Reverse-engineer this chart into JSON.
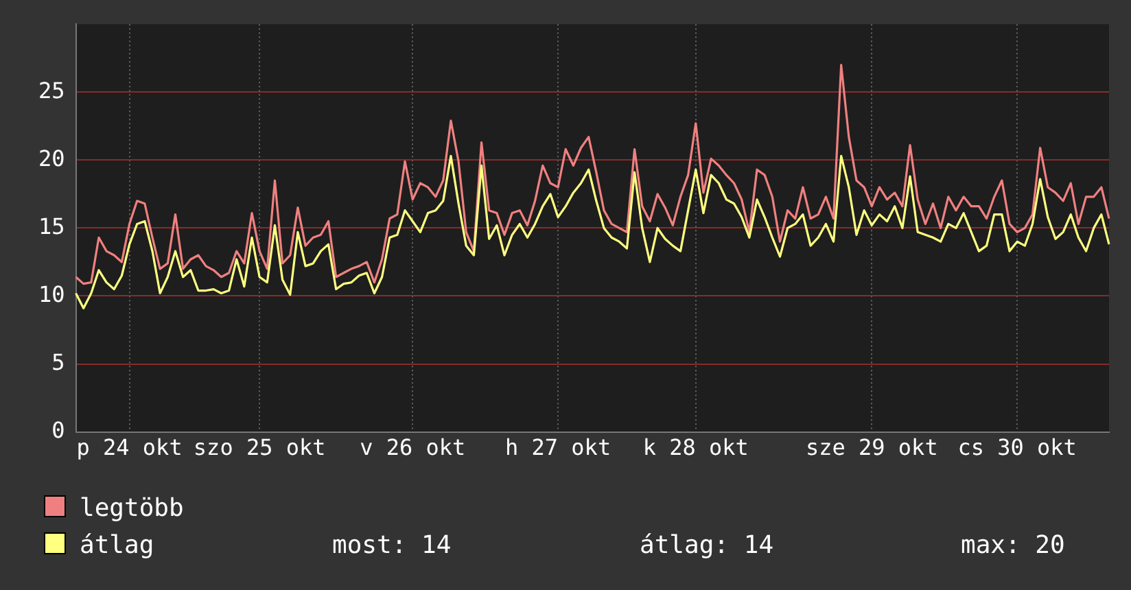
{
  "chart_data": {
    "type": "line",
    "categories": [
      null,
      null,
      null,
      null,
      null,
      null,
      null,
      "p 24 okt",
      null,
      null,
      null,
      null,
      null,
      null,
      null,
      null,
      null,
      null,
      null,
      null,
      null,
      null,
      null,
      null,
      "szo 25 okt",
      null,
      null,
      null,
      null,
      null,
      null,
      null,
      null,
      null,
      null,
      null,
      null,
      null,
      null,
      null,
      null,
      null,
      null,
      null,
      "v 26 okt",
      null,
      null,
      null,
      null,
      null,
      null,
      null,
      null,
      null,
      null,
      null,
      null,
      null,
      null,
      null,
      null,
      null,
      null,
      "h 27 okt",
      null,
      null,
      null,
      null,
      null,
      null,
      null,
      null,
      null,
      null,
      null,
      null,
      null,
      null,
      null,
      null,
      null,
      "k 28 okt",
      null,
      null,
      null,
      null,
      null,
      null,
      null,
      null,
      null,
      null,
      null,
      null,
      null,
      null,
      null,
      null,
      null,
      null,
      null,
      null,
      null,
      null,
      "sze 29 okt",
      null,
      null,
      null,
      null,
      null,
      null,
      null,
      null,
      null,
      null,
      null,
      null,
      null,
      null,
      null,
      null,
      null,
      null,
      "cs 30 okt",
      null,
      null,
      null,
      null,
      null,
      null,
      null,
      null,
      null,
      null,
      null,
      null
    ],
    "ylim": [
      0,
      30
    ],
    "yticks": [
      0,
      5,
      10,
      15,
      20,
      25
    ],
    "grid": true,
    "legend": "bottom left",
    "marker": "none",
    "line_style": "solid",
    "annotations": [
      "most: 14",
      "átlag: 14",
      "max: 20"
    ],
    "series": [
      {
        "name": "legtöbb",
        "color": "#f08080",
        "values": [
          11.4,
          10.9,
          11.0,
          14.3,
          13.3,
          13.0,
          12.5,
          15.3,
          17.0,
          16.8,
          14.3,
          12.0,
          12.4,
          16.0,
          12.0,
          12.7,
          13.0,
          12.2,
          11.9,
          11.4,
          11.7,
          13.3,
          12.4,
          16.1,
          13.3,
          12.0,
          18.5,
          12.4,
          13.0,
          16.5,
          13.7,
          14.3,
          14.5,
          15.5,
          11.4,
          11.7,
          12.0,
          12.2,
          12.5,
          11.0,
          12.7,
          15.7,
          16.0,
          19.9,
          17.1,
          18.3,
          18.0,
          17.3,
          18.5,
          22.9,
          19.9,
          14.7,
          13.3,
          21.3,
          16.3,
          16.1,
          14.5,
          16.1,
          16.3,
          15.2,
          17.0,
          19.6,
          18.3,
          18.0,
          20.8,
          19.6,
          20.9,
          21.7,
          19.1,
          16.3,
          15.3,
          15.0,
          14.7,
          20.8,
          16.6,
          15.5,
          17.5,
          16.5,
          15.2,
          17.3,
          18.9,
          22.7,
          17.6,
          20.1,
          19.6,
          18.9,
          18.3,
          17.1,
          14.7,
          19.3,
          18.9,
          17.3,
          14.0,
          16.3,
          15.7,
          18.0,
          15.7,
          16.0,
          17.3,
          15.7,
          27.0,
          21.7,
          18.5,
          18.0,
          16.6,
          18.0,
          17.1,
          17.6,
          16.6,
          21.1,
          17.1,
          15.3,
          16.8,
          15.0,
          17.3,
          16.3,
          17.3,
          16.6,
          16.6,
          15.7,
          17.3,
          18.5,
          15.3,
          14.7,
          15.0,
          16.0,
          20.9,
          18.0,
          17.6,
          17.0,
          18.3,
          15.3,
          17.3,
          17.3,
          18.0,
          15.7
        ]
      },
      {
        "name": "átlag",
        "color": "#ffff80",
        "values": [
          10.2,
          9.1,
          10.2,
          11.9,
          11.0,
          10.5,
          11.5,
          13.8,
          15.3,
          15.5,
          13.3,
          10.2,
          11.4,
          13.3,
          11.4,
          11.9,
          10.4,
          10.4,
          10.5,
          10.2,
          10.4,
          12.7,
          10.7,
          14.3,
          11.4,
          11.0,
          15.2,
          11.2,
          10.1,
          14.7,
          12.2,
          12.4,
          13.3,
          13.8,
          10.5,
          10.9,
          11.0,
          11.5,
          11.7,
          10.2,
          11.4,
          14.3,
          14.5,
          16.3,
          15.5,
          14.7,
          16.1,
          16.3,
          17.0,
          20.3,
          16.8,
          13.7,
          13.0,
          19.6,
          14.2,
          15.2,
          13.0,
          14.5,
          15.3,
          14.3,
          15.3,
          16.6,
          17.5,
          15.8,
          16.6,
          17.6,
          18.3,
          19.3,
          17.0,
          15.0,
          14.3,
          14.0,
          13.5,
          19.1,
          15.0,
          12.5,
          15.0,
          14.2,
          13.7,
          13.3,
          16.3,
          19.3,
          16.1,
          18.9,
          18.3,
          17.1,
          16.8,
          15.8,
          14.3,
          17.1,
          15.8,
          14.3,
          12.9,
          15.0,
          15.3,
          16.0,
          13.7,
          14.3,
          15.3,
          14.0,
          20.3,
          18.0,
          14.5,
          16.3,
          15.2,
          16.0,
          15.5,
          16.6,
          15.0,
          18.8,
          14.7,
          14.5,
          14.3,
          14.0,
          15.3,
          15.0,
          16.1,
          14.7,
          13.3,
          13.7,
          16.0,
          16.0,
          13.3,
          14.0,
          13.7,
          15.3,
          18.6,
          15.8,
          14.2,
          14.7,
          16.0,
          14.3,
          13.3,
          15.0,
          16.0,
          13.8
        ]
      }
    ]
  }
}
